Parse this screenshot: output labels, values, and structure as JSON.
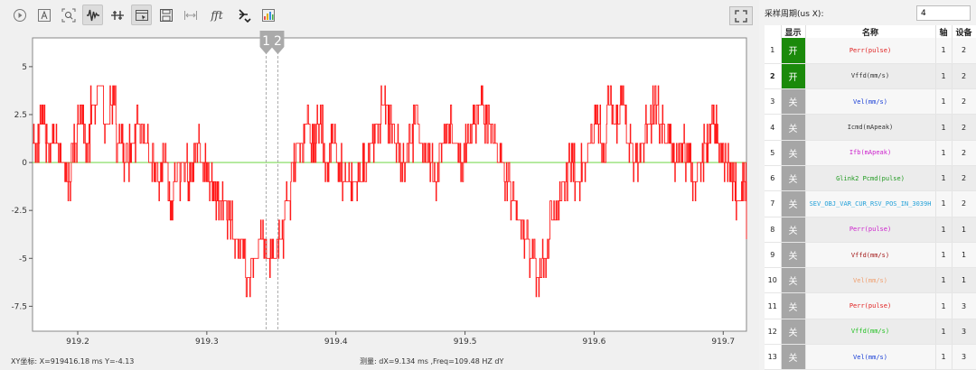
{
  "toolbar": [
    {
      "name": "play-icon"
    },
    {
      "name": "text-a-icon"
    },
    {
      "name": "zoom-fit-icon"
    },
    {
      "name": "waveform-icon",
      "active": true
    },
    {
      "name": "cursor-icon"
    },
    {
      "name": "select-area-icon",
      "active": true
    },
    {
      "name": "save-icon"
    },
    {
      "name": "measure-width-icon"
    },
    {
      "name": "fft-icon",
      "label": "fft"
    },
    {
      "name": "sort-icon"
    },
    {
      "name": "bar-chart-icon"
    }
  ],
  "period": {
    "label": "采样周期(us X):",
    "value": "4"
  },
  "table": {
    "headers": {
      "idx": "",
      "show": "显示",
      "name": "名称",
      "axis": "轴",
      "device": "设备"
    },
    "rows": [
      {
        "idx": "1",
        "show": "开",
        "on": true,
        "name": "Perr(pulse)",
        "color": "#e02020",
        "axis": "1",
        "device": "2"
      },
      {
        "idx": "2",
        "show": "开",
        "on": true,
        "name": "Vffd(mm/s)",
        "color": "#333333",
        "axis": "1",
        "device": "2",
        "selected": true
      },
      {
        "idx": "3",
        "show": "关",
        "on": false,
        "name": "Vel(mm/s)",
        "color": "#1a3fd6",
        "axis": "1",
        "device": "2"
      },
      {
        "idx": "4",
        "show": "关",
        "on": false,
        "name": "Icmd(mApeak)",
        "color": "#333333",
        "axis": "1",
        "device": "2"
      },
      {
        "idx": "5",
        "show": "关",
        "on": false,
        "name": "Ifb(mApeak)",
        "color": "#cc22cc",
        "axis": "1",
        "device": "2"
      },
      {
        "idx": "6",
        "show": "关",
        "on": false,
        "name": "Glink2 Pcmd(pulse)",
        "color": "#209a20",
        "axis": "1",
        "device": "2"
      },
      {
        "idx": "7",
        "show": "关",
        "on": false,
        "name": "SEV_OBJ_VAR_CUR_RSV_POS_IN_3039H",
        "color": "#22a0d8",
        "axis": "1",
        "device": "2"
      },
      {
        "idx": "8",
        "show": "关",
        "on": false,
        "name": "Perr(pulse)",
        "color": "#cc22cc",
        "axis": "1",
        "device": "1"
      },
      {
        "idx": "9",
        "show": "关",
        "on": false,
        "name": "Vffd(mm/s)",
        "color": "#a31818",
        "axis": "1",
        "device": "1"
      },
      {
        "idx": "10",
        "show": "关",
        "on": false,
        "name": "Vel(mm/s)",
        "color": "#f0a070",
        "axis": "1",
        "device": "1"
      },
      {
        "idx": "11",
        "show": "关",
        "on": false,
        "name": "Perr(pulse)",
        "color": "#e02020",
        "axis": "1",
        "device": "3"
      },
      {
        "idx": "12",
        "show": "关",
        "on": false,
        "name": "Vffd(mm/s)",
        "color": "#22c022",
        "axis": "1",
        "device": "3"
      },
      {
        "idx": "13",
        "show": "关",
        "on": false,
        "name": "Vel(mm/s)",
        "color": "#1a3fd6",
        "axis": "1",
        "device": "3"
      }
    ]
  },
  "status": {
    "coord": "XY坐标: X=919416.18 ms  Y=-4.13",
    "measure": "测量:  dX=9.134 ms ,Freq=109.48 HZ dY"
  },
  "cursors": {
    "label1": "1",
    "label2": "2",
    "x1": 919.346,
    "x2": 919.355
  },
  "chart_data": {
    "type": "line",
    "xlim": [
      919.165,
      919.718
    ],
    "ylim": [
      -8.8,
      6.5
    ],
    "xticks": [
      919.2,
      919.3,
      919.4,
      919.5,
      919.6,
      919.7
    ],
    "xtick_labels": [
      "919.2",
      "919.3",
      "919.4",
      "919.5",
      "919.6",
      "919.7"
    ],
    "yticks": [
      5,
      2.5,
      0,
      -2.5,
      -5,
      -7.5
    ],
    "ytick_labels": [
      "5",
      "2.5",
      "0",
      "-2.5",
      "-5",
      "-7.5"
    ],
    "series": [
      {
        "color": "#ff1a1a",
        "x": [
          919.165,
          919.17,
          919.175,
          919.18,
          919.185,
          919.19,
          919.195,
          919.2,
          919.205,
          919.21,
          919.215,
          919.22,
          919.225,
          919.23,
          919.235,
          919.24,
          919.245,
          919.25,
          919.255,
          919.26,
          919.265,
          919.27,
          919.275,
          919.28,
          919.285,
          919.29,
          919.295,
          919.3,
          919.305,
          919.31,
          919.315,
          919.32,
          919.325,
          919.33,
          919.335,
          919.34,
          919.345,
          919.35,
          919.355,
          919.36,
          919.365,
          919.37,
          919.375,
          919.38,
          919.385,
          919.39,
          919.395,
          919.4,
          919.405,
          919.41,
          919.415,
          919.42,
          919.425,
          919.43,
          919.435,
          919.44,
          919.445,
          919.45,
          919.455,
          919.46,
          919.465,
          919.47,
          919.475,
          919.48,
          919.485,
          919.49,
          919.495,
          919.5,
          919.505,
          919.51,
          919.515,
          919.52,
          919.525,
          919.53,
          919.535,
          919.54,
          919.545,
          919.55,
          919.555,
          919.56,
          919.565,
          919.57,
          919.575,
          919.58,
          919.585,
          919.59,
          919.595,
          919.6,
          919.605,
          919.61,
          919.615,
          919.62,
          919.625,
          919.63,
          919.635,
          919.64,
          919.645,
          919.65,
          919.655,
          919.66,
          919.665,
          919.67,
          919.675,
          919.68,
          919.685,
          919.69,
          919.695,
          919.7,
          919.705,
          919.71,
          919.715,
          919.718
        ],
        "y": [
          1,
          2,
          1,
          1,
          0,
          -1,
          1,
          2,
          1,
          3,
          4,
          2,
          3,
          1,
          0,
          1,
          2,
          1,
          0,
          -1,
          0,
          -2,
          -1,
          0,
          -1,
          1,
          0,
          -1,
          -2,
          -2,
          -3,
          -4,
          -5,
          -6,
          -5,
          -4,
          -5,
          -5,
          -4,
          -2,
          0,
          1,
          2,
          1,
          2,
          0,
          1,
          0,
          -1,
          -1,
          -1,
          0,
          1,
          2,
          3,
          2,
          1,
          0,
          1,
          2,
          1,
          0,
          -1,
          1,
          2,
          1,
          0,
          1,
          2,
          3,
          2,
          1,
          0,
          -1,
          -2,
          -3,
          -4,
          -5,
          -6,
          -5,
          -3,
          -2,
          -1,
          0,
          -1,
          0,
          1,
          2,
          1,
          3,
          2,
          3,
          1,
          0,
          1,
          2,
          3,
          2,
          1,
          0,
          1,
          0,
          -1,
          0,
          1,
          2,
          1,
          0,
          -1,
          -2,
          -1,
          -4
        ],
        "noise": true
      },
      {
        "color": "#7ed957",
        "x": [
          919.165,
          919.718
        ],
        "y": [
          0,
          0
        ]
      }
    ]
  }
}
